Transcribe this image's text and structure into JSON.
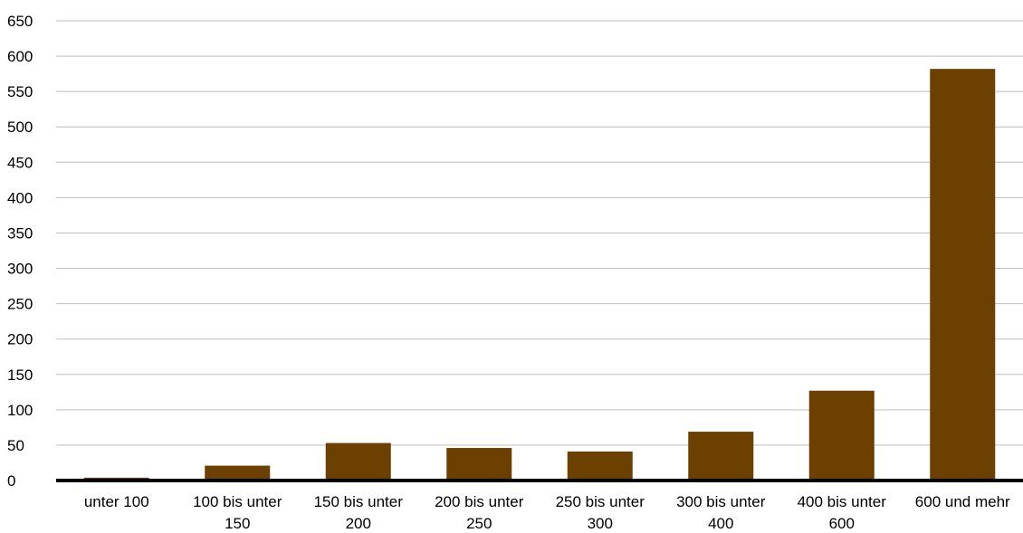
{
  "chart_data": {
    "type": "bar",
    "categories": [
      "unter 100",
      "100 bis unter 150",
      "150 bis unter 200",
      "200 bis unter 250",
      "250 bis unter 300",
      "300 bis unter 400",
      "400 bis unter 600",
      "600 und mehr"
    ],
    "category_lines": [
      [
        "unter 100"
      ],
      [
        "100 bis unter",
        "150"
      ],
      [
        "150 bis unter",
        "200"
      ],
      [
        "200 bis unter",
        "250"
      ],
      [
        "250 bis unter",
        "300"
      ],
      [
        "300 bis unter",
        "400"
      ],
      [
        "400 bis unter",
        "600"
      ],
      [
        "600 und mehr"
      ]
    ],
    "values": [
      4,
      21,
      53,
      46,
      41,
      69,
      127,
      582
    ],
    "ylim": [
      0,
      650
    ],
    "yticks": [
      "0",
      "50",
      "100",
      "150",
      "200",
      "250",
      "300",
      "350",
      "400",
      "450",
      "500",
      "550",
      "600",
      "650"
    ],
    "title": "",
    "xlabel": "",
    "ylabel": "",
    "grid": true,
    "legend": "none",
    "colors": {
      "bar": "#6b4000",
      "grid": "#bfbfbf",
      "axis": "#000000"
    }
  }
}
